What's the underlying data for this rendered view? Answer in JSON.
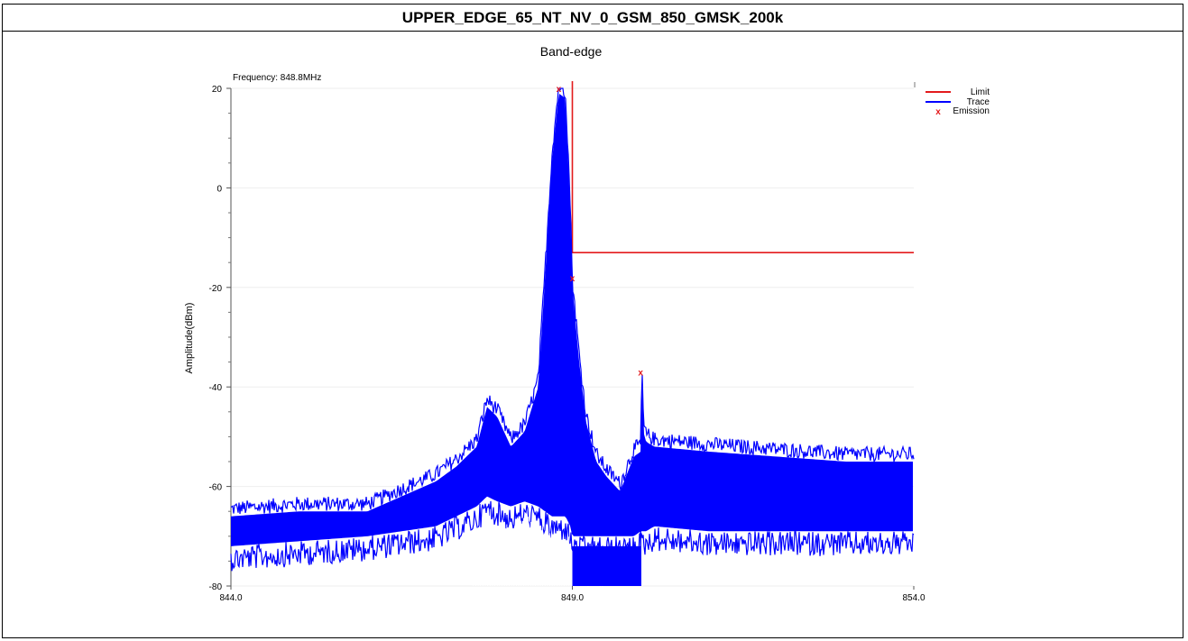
{
  "header": {
    "title": "UPPER_EDGE_65_NT_NV_0_GSM_850_GMSK_200k"
  },
  "chart_data": {
    "type": "line",
    "title": "Band-edge",
    "annotation": "Frequency: 848.8MHz",
    "xlabel": "",
    "ylabel": "Amplitude(dBm)",
    "xlim": [
      844.0,
      854.0
    ],
    "ylim": [
      -80,
      20
    ],
    "x_ticks": [
      "844.0",
      "849.0",
      "854.0"
    ],
    "y_ticks": [
      20,
      0,
      -20,
      -40,
      -60,
      -80
    ],
    "legend_position": "top-right",
    "colors": {
      "limit": "#e31a1c",
      "trace": "#0000ff",
      "emission": "#e31a1c"
    },
    "series": [
      {
        "name": "Limit",
        "kind": "line",
        "x": [
          849.0,
          849.0,
          854.0
        ],
        "y": [
          22,
          -13,
          -13
        ]
      },
      {
        "name": "Trace",
        "kind": "envelope",
        "x": [
          844.0,
          845.0,
          846.0,
          846.5,
          847.0,
          847.3,
          847.6,
          847.75,
          847.9,
          848.1,
          848.3,
          848.5,
          848.6,
          848.7,
          848.8,
          848.9,
          848.97,
          849.0,
          849.1,
          849.2,
          849.35,
          849.5,
          849.7,
          849.9,
          850.0,
          850.02,
          850.04,
          850.08,
          850.2,
          851.0,
          852.0,
          853.0,
          854.0
        ],
        "y_upper": [
          -66,
          -65,
          -65,
          -62,
          -59,
          -56,
          -52,
          -44,
          -46,
          -52,
          -49,
          -40,
          -18,
          5,
          19,
          18,
          -5,
          -20,
          -35,
          -47,
          -55,
          -58,
          -61,
          -54,
          -53,
          -37,
          -49,
          -51,
          -52,
          -53,
          -54,
          -55,
          -55
        ],
        "y_lower": [
          -72,
          -71,
          -70,
          -69,
          -68,
          -66,
          -64,
          -62,
          -63,
          -64,
          -63,
          -64,
          -65,
          -66,
          -66,
          -66,
          -68,
          -70,
          -70,
          -70,
          -70,
          -70,
          -70,
          -70,
          -69,
          -69,
          -69,
          -69,
          -68,
          -69,
          -69,
          -69,
          -69
        ]
      },
      {
        "name": "Emission",
        "kind": "marker",
        "x": [
          848.8,
          849.0,
          850.0
        ],
        "y": [
          20,
          -18,
          -37
        ]
      }
    ]
  }
}
